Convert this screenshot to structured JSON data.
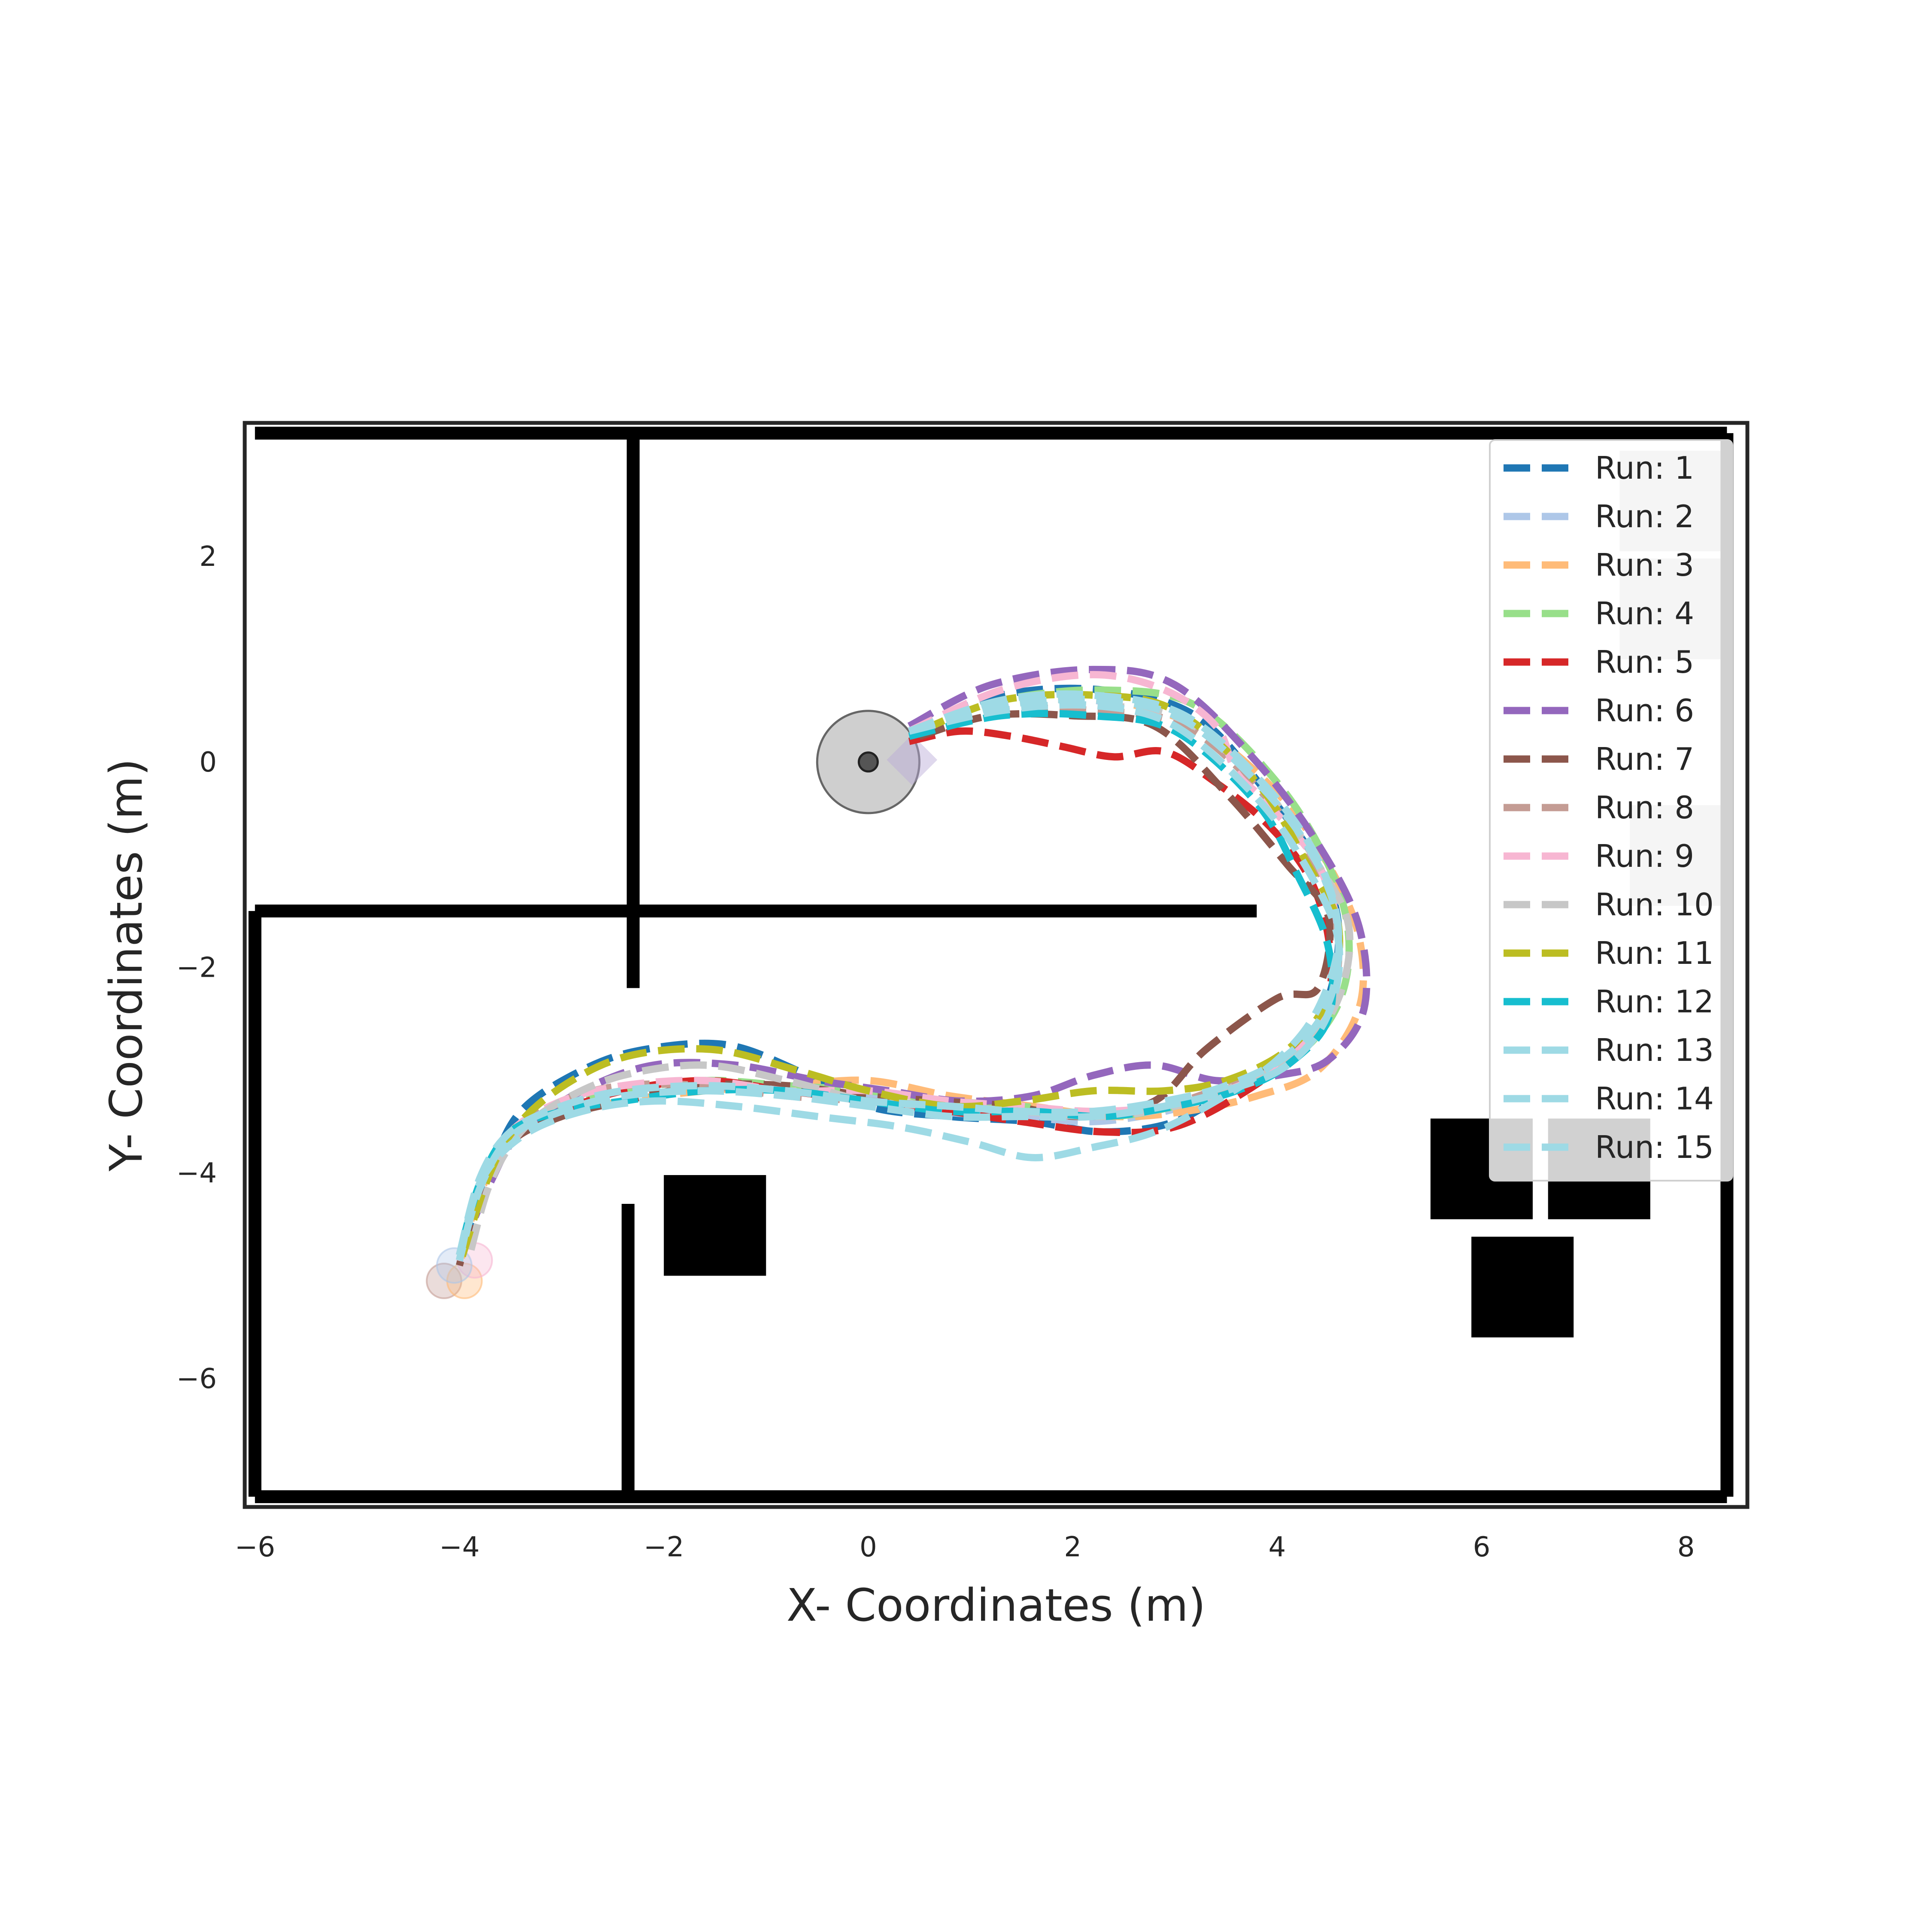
{
  "chart_data": {
    "type": "line",
    "title": "",
    "xlabel": "X- Coordinates (m)",
    "ylabel": "Y- Coordinates (m)",
    "xlim": [
      -6.1,
      8.6
    ],
    "ylim": [
      -7.25,
      3.3
    ],
    "xticks": [
      {
        "value": -6,
        "label": "−6"
      },
      {
        "value": -4,
        "label": "−4"
      },
      {
        "value": -2,
        "label": "−2"
      },
      {
        "value": 0,
        "label": "0"
      },
      {
        "value": 2,
        "label": "2"
      },
      {
        "value": 4,
        "label": "4"
      },
      {
        "value": 6,
        "label": "6"
      },
      {
        "value": 8,
        "label": "8"
      }
    ],
    "yticks": [
      {
        "value": 2,
        "label": "2"
      },
      {
        "value": 0,
        "label": "0"
      },
      {
        "value": -2,
        "label": "−2"
      },
      {
        "value": -4,
        "label": "−4"
      },
      {
        "value": -6,
        "label": "−6"
      }
    ],
    "grid": false,
    "legend_position": "top-right",
    "start": {
      "x": 0.0,
      "y": 0.0
    },
    "goal": {
      "x": -4.05,
      "y": -4.95
    },
    "walls": [
      [
        [
          -6.0,
          3.2
        ],
        [
          8.4,
          3.2
        ]
      ],
      [
        [
          -6.0,
          -7.15
        ],
        [
          8.4,
          -7.15
        ]
      ],
      [
        [
          -6.0,
          -1.45
        ],
        [
          -6.0,
          -7.15
        ]
      ],
      [
        [
          8.4,
          3.2
        ],
        [
          8.4,
          -7.15
        ]
      ],
      [
        [
          -2.3,
          3.2
        ],
        [
          -2.3,
          -2.2
        ]
      ],
      [
        [
          -6.0,
          -1.45
        ],
        [
          3.8,
          -1.45
        ]
      ],
      [
        [
          -2.35,
          -4.3
        ],
        [
          -2.35,
          -7.15
        ]
      ]
    ],
    "obstacles": [
      {
        "x": -2.0,
        "y": -5.0,
        "w": 1.0,
        "h": 0.98,
        "fill": "#000000"
      },
      {
        "x": 5.5,
        "y": -4.45,
        "w": 1.0,
        "h": 0.98,
        "fill": "#000000"
      },
      {
        "x": 6.65,
        "y": -4.45,
        "w": 1.0,
        "h": 0.98,
        "fill": "#000000"
      },
      {
        "x": 5.9,
        "y": -5.6,
        "w": 1.0,
        "h": 0.98,
        "fill": "#000000"
      },
      {
        "x": 7.35,
        "y": 2.05,
        "w": 1.0,
        "h": 0.98,
        "fill": "#c8c8c8"
      },
      {
        "x": 7.35,
        "y": 1.0,
        "w": 1.0,
        "h": 0.98,
        "fill": "#c8c8c8"
      },
      {
        "x": 7.45,
        "y": -1.4,
        "w": 1.0,
        "h": 0.98,
        "fill": "#c8c8c8"
      }
    ],
    "series": [
      {
        "name": "Run: 1",
        "color": "#1f77b4",
        "x": [
          0.4,
          1.3,
          2.3,
          3.2,
          3.9,
          4.4,
          4.6,
          4.5,
          4.2,
          3.6,
          3.0,
          2.3,
          1.6,
          0.8,
          0.0,
          -0.7,
          -1.4,
          -2.2,
          -2.8,
          -3.4,
          -3.7,
          -4.0
        ],
        "y": [
          0.3,
          0.65,
          0.7,
          0.45,
          -0.3,
          -1.0,
          -1.6,
          -2.3,
          -2.8,
          -3.15,
          -3.5,
          -3.6,
          -3.5,
          -3.45,
          -3.35,
          -3.0,
          -2.75,
          -2.8,
          -3.0,
          -3.4,
          -4.0,
          -4.85
        ]
      },
      {
        "name": "Run: 2",
        "color": "#aec7e8",
        "x": [
          0.4,
          1.3,
          2.2,
          3.1,
          3.9,
          4.4,
          4.6,
          4.5,
          4.1,
          3.5,
          2.9,
          2.2,
          1.5,
          0.7,
          0.0,
          -0.8,
          -1.6,
          -2.4,
          -3.0,
          -3.5,
          -3.8,
          -4.0
        ],
        "y": [
          0.3,
          0.55,
          0.6,
          0.4,
          -0.3,
          -1.0,
          -1.7,
          -2.4,
          -2.9,
          -3.2,
          -3.4,
          -3.5,
          -3.45,
          -3.4,
          -3.25,
          -3.2,
          -3.15,
          -3.2,
          -3.35,
          -3.6,
          -4.1,
          -4.8
        ]
      },
      {
        "name": "Run: 3",
        "color": "#ffbb78",
        "x": [
          0.4,
          1.3,
          2.3,
          3.2,
          4.0,
          4.5,
          4.8,
          4.8,
          4.4,
          3.8,
          3.1,
          2.4,
          1.6,
          0.8,
          0.0,
          -0.8,
          -1.6,
          -2.4,
          -3.0,
          -3.5,
          -3.8,
          -4.0
        ],
        "y": [
          0.3,
          0.55,
          0.6,
          0.35,
          -0.3,
          -1.0,
          -1.7,
          -2.4,
          -3.0,
          -3.25,
          -3.4,
          -3.45,
          -3.35,
          -3.25,
          -3.1,
          -3.15,
          -3.2,
          -3.3,
          -3.45,
          -3.7,
          -4.2,
          -4.9
        ]
      },
      {
        "name": "Run: 4",
        "color": "#98df8a",
        "x": [
          0.4,
          1.3,
          2.3,
          3.2,
          4.0,
          4.5,
          4.7,
          4.6,
          4.2,
          3.6,
          3.0,
          2.3,
          1.5,
          0.8,
          0.0,
          -0.8,
          -1.6,
          -2.4,
          -3.0,
          -3.5,
          -3.8,
          -4.0
        ],
        "y": [
          0.3,
          0.6,
          0.7,
          0.55,
          -0.2,
          -1.0,
          -1.7,
          -2.35,
          -2.85,
          -3.15,
          -3.35,
          -3.45,
          -3.35,
          -3.3,
          -3.2,
          -3.15,
          -3.1,
          -3.2,
          -3.35,
          -3.6,
          -4.1,
          -4.85
        ]
      },
      {
        "name": "Run: 5",
        "color": "#d62728",
        "x": [
          0.4,
          0.9,
          1.4,
          1.9,
          2.4,
          2.9,
          3.4,
          3.9,
          4.3,
          4.5,
          4.5,
          4.2,
          3.7,
          3.0,
          2.3,
          1.5,
          0.8,
          0.0,
          -0.8,
          -1.6,
          -2.4,
          -3.0,
          -3.5,
          -3.8,
          -4.0
        ],
        "y": [
          0.2,
          0.3,
          0.25,
          0.15,
          0.05,
          0.1,
          -0.2,
          -0.6,
          -1.1,
          -1.7,
          -2.3,
          -2.8,
          -3.2,
          -3.55,
          -3.6,
          -3.5,
          -3.4,
          -3.3,
          -3.2,
          -3.1,
          -3.2,
          -3.4,
          -3.65,
          -4.1,
          -4.85
        ]
      },
      {
        "name": "Run: 6",
        "color": "#9467bd",
        "x": [
          0.4,
          1.2,
          2.2,
          3.0,
          3.8,
          4.4,
          4.8,
          4.85,
          4.5,
          4.0,
          3.4,
          2.8,
          2.2,
          1.6,
          0.9,
          0.2,
          -0.5,
          -1.3,
          -2.1,
          -2.8,
          -3.4,
          -3.7,
          -4.0
        ],
        "y": [
          0.35,
          0.75,
          0.9,
          0.75,
          0.0,
          -0.8,
          -1.6,
          -2.4,
          -2.9,
          -3.05,
          -3.1,
          -2.95,
          -3.05,
          -3.25,
          -3.3,
          -3.2,
          -3.1,
          -2.95,
          -2.95,
          -3.2,
          -3.6,
          -4.1,
          -4.8
        ]
      },
      {
        "name": "Run: 7",
        "color": "#8c564b",
        "x": [
          0.5,
          1.2,
          2.0,
          2.8,
          3.5,
          4.1,
          4.5,
          4.4,
          4.0,
          3.3,
          2.8,
          2.1,
          1.4,
          0.7,
          0.0,
          -0.8,
          -1.6,
          -2.4,
          -3.0,
          -3.5,
          -3.8,
          -4.0
        ],
        "y": [
          0.25,
          0.45,
          0.45,
          0.35,
          -0.3,
          -1.0,
          -1.5,
          -2.2,
          -2.3,
          -2.8,
          -3.3,
          -3.45,
          -3.35,
          -3.3,
          -3.25,
          -3.15,
          -3.15,
          -3.3,
          -3.45,
          -3.7,
          -4.2,
          -4.9
        ]
      },
      {
        "name": "Run: 8",
        "color": "#c49c94",
        "x": [
          0.4,
          1.3,
          2.2,
          3.1,
          3.9,
          4.4,
          4.6,
          4.5,
          4.1,
          3.5,
          2.9,
          2.2,
          1.5,
          0.8,
          0.0,
          -0.8,
          -1.6,
          -2.4,
          -3.0,
          -3.5,
          -3.8,
          -4.0
        ],
        "y": [
          0.3,
          0.5,
          0.5,
          0.35,
          -0.35,
          -1.05,
          -1.7,
          -2.4,
          -2.9,
          -3.15,
          -3.35,
          -3.45,
          -3.4,
          -3.35,
          -3.3,
          -3.25,
          -3.15,
          -3.15,
          -3.3,
          -3.6,
          -4.1,
          -4.8
        ]
      },
      {
        "name": "Run: 9",
        "color": "#f7b6d2",
        "x": [
          0.4,
          1.3,
          2.2,
          2.9,
          3.4,
          3.6,
          3.9,
          4.4,
          4.6,
          4.5,
          4.1,
          3.5,
          2.9,
          2.2,
          1.5,
          0.8,
          0.0,
          -0.8,
          -1.6,
          -2.4,
          -3.0,
          -3.5,
          -3.8,
          -4.0
        ],
        "y": [
          0.3,
          0.7,
          0.85,
          0.7,
          0.35,
          -0.1,
          -0.4,
          -1.0,
          -1.7,
          -2.4,
          -2.9,
          -3.2,
          -3.35,
          -3.4,
          -3.35,
          -3.3,
          -3.2,
          -3.2,
          -3.1,
          -3.15,
          -3.3,
          -3.6,
          -4.1,
          -4.8
        ]
      },
      {
        "name": "Run: 10",
        "color": "#c7c7c7",
        "x": [
          0.4,
          1.3,
          2.2,
          3.1,
          3.9,
          4.4,
          4.7,
          4.6,
          4.2,
          3.6,
          3.0,
          2.3,
          1.5,
          0.8,
          0.0,
          -0.8,
          -1.6,
          -2.4,
          -3.0,
          -3.4,
          -3.7,
          -3.9
        ],
        "y": [
          0.3,
          0.5,
          0.55,
          0.4,
          -0.3,
          -1.0,
          -1.6,
          -2.3,
          -2.85,
          -3.15,
          -3.35,
          -3.45,
          -3.4,
          -3.35,
          -3.3,
          -3.1,
          -2.95,
          -3.05,
          -3.3,
          -3.6,
          -4.1,
          -4.8
        ]
      },
      {
        "name": "Run: 11",
        "color": "#bcbd22",
        "x": [
          0.5,
          1.3,
          2.2,
          3.0,
          3.8,
          4.3,
          4.6,
          4.5,
          4.1,
          3.5,
          2.9,
          2.2,
          1.5,
          0.8,
          0.0,
          -0.7,
          -1.5,
          -2.3,
          -2.9,
          -3.4,
          -3.7,
          -4.0
        ],
        "y": [
          0.3,
          0.6,
          0.65,
          0.5,
          -0.2,
          -1.0,
          -1.6,
          -2.3,
          -2.8,
          -3.1,
          -3.2,
          -3.2,
          -3.3,
          -3.35,
          -3.2,
          -3.0,
          -2.8,
          -2.85,
          -3.1,
          -3.5,
          -4.0,
          -4.9
        ]
      },
      {
        "name": "Run: 12",
        "color": "#17becf",
        "x": [
          0.4,
          1.3,
          2.2,
          3.0,
          3.8,
          4.2,
          4.5,
          4.5,
          4.1,
          3.6,
          3.0,
          2.3,
          1.6,
          0.8,
          0.0,
          -0.8,
          -1.6,
          -2.4,
          -3.0,
          -3.5,
          -3.8,
          -4.0
        ],
        "y": [
          0.25,
          0.45,
          0.45,
          0.3,
          -0.4,
          -1.1,
          -1.8,
          -2.5,
          -2.95,
          -3.2,
          -3.35,
          -3.45,
          -3.4,
          -3.4,
          -3.3,
          -3.2,
          -3.2,
          -3.3,
          -3.4,
          -3.6,
          -4.1,
          -4.8
        ]
      },
      {
        "name": "Run: 13",
        "color": "#9edae5",
        "x": [
          0.4,
          1.3,
          2.3,
          3.1,
          3.9,
          4.4,
          4.6,
          4.4,
          4.0,
          3.4,
          2.8,
          2.2,
          1.6,
          1.0,
          0.3,
          -0.5,
          -1.3,
          -2.1,
          -2.8,
          -3.4,
          -3.8,
          -4.0
        ],
        "y": [
          0.3,
          0.55,
          0.6,
          0.4,
          -0.3,
          -1.0,
          -1.7,
          -2.4,
          -2.9,
          -3.3,
          -3.6,
          -3.75,
          -3.85,
          -3.7,
          -3.55,
          -3.45,
          -3.35,
          -3.3,
          -3.4,
          -3.65,
          -4.1,
          -4.85
        ]
      },
      {
        "name": "Run: 14",
        "color": "#9edae5",
        "x": [
          0.4,
          1.3,
          2.2,
          3.0,
          3.8,
          4.3,
          4.6,
          4.5,
          4.1,
          3.5,
          2.9,
          2.2,
          1.5,
          0.8,
          0.0,
          -0.8,
          -1.6,
          -2.4,
          -3.0,
          -3.5,
          -3.8,
          -4.0
        ],
        "y": [
          0.3,
          0.5,
          0.55,
          0.35,
          -0.35,
          -1.05,
          -1.75,
          -2.45,
          -2.95,
          -3.2,
          -3.35,
          -3.45,
          -3.45,
          -3.45,
          -3.35,
          -3.25,
          -3.2,
          -3.25,
          -3.4,
          -3.65,
          -4.15,
          -4.85
        ]
      },
      {
        "name": "Run: 15",
        "color": "#9edae5",
        "x": [
          0.4,
          1.3,
          2.2,
          3.1,
          3.9,
          4.4,
          4.6,
          4.5,
          4.1,
          3.5,
          2.9,
          2.2,
          1.5,
          0.8,
          0.0,
          -0.8,
          -1.6,
          -2.4,
          -3.0,
          -3.5,
          -3.8,
          -4.0
        ],
        "y": [
          0.3,
          0.6,
          0.65,
          0.45,
          -0.25,
          -0.95,
          -1.65,
          -2.35,
          -2.85,
          -3.15,
          -3.3,
          -3.4,
          -3.4,
          -3.35,
          -3.3,
          -3.2,
          -3.15,
          -3.2,
          -3.35,
          -3.6,
          -4.05,
          -4.8
        ]
      }
    ]
  }
}
